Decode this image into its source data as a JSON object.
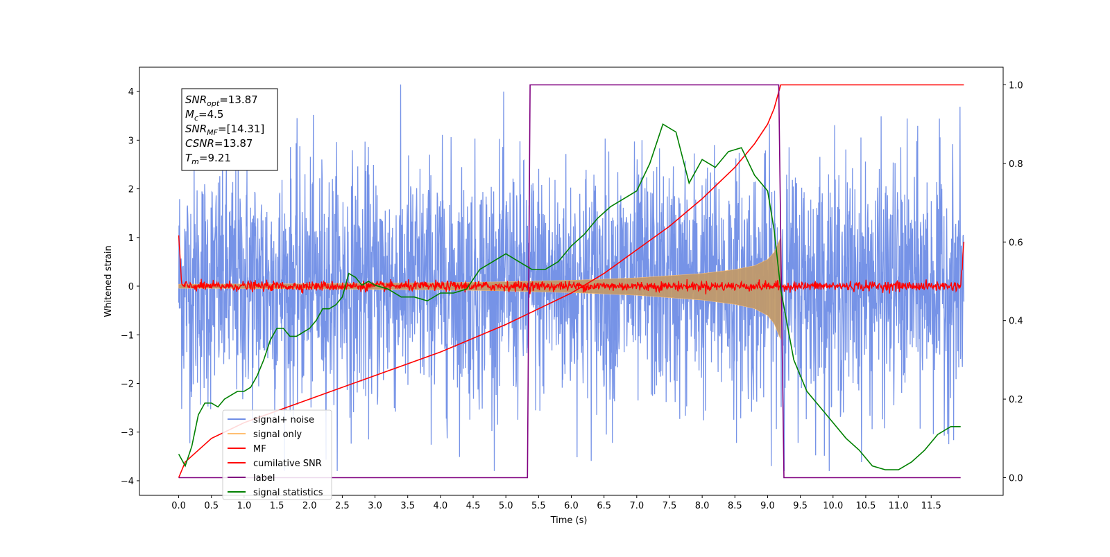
{
  "chart_data": {
    "type": "line",
    "xlabel": "Time (s)",
    "ylabel": "Whitened strain",
    "xlim": [
      -0.6,
      12.6
    ],
    "ylim": [
      -4.3,
      4.5
    ],
    "y2lim": [
      -0.045,
      1.045
    ],
    "xticks": [
      "0.0",
      "0.5",
      "1.0",
      "1.5",
      "2.0",
      "2.5",
      "3.0",
      "3.5",
      "4.0",
      "4.5",
      "5.0",
      "5.5",
      "6.0",
      "6.5",
      "7.0",
      "7.5",
      "8.0",
      "8.5",
      "9.0",
      "9.5",
      "10.0",
      "10.5",
      "11.0",
      "11.5"
    ],
    "yticks": [
      "4",
      "3",
      "2",
      "1",
      "0",
      "−1",
      "−2",
      "−3",
      "−4"
    ],
    "y2ticks": [
      "1.0",
      "0.8",
      "0.6",
      "0.4",
      "0.2",
      "0.0"
    ],
    "annotation": [
      {
        "base": "SNR",
        "sub": "opt",
        "value": "=13.87"
      },
      {
        "base": "M",
        "sub": "c",
        "value": "=4.5"
      },
      {
        "base": "SNR",
        "sub": "MF",
        "value": "=[14.31]"
      },
      {
        "base": "CSNR",
        "sub": "",
        "value": "=13.87"
      },
      {
        "base": "T",
        "sub": "m",
        "value": "=9.21"
      }
    ],
    "legend_position": "lower-left",
    "legend": [
      {
        "label": "signal+ noise",
        "color": "#6f8de6"
      },
      {
        "label": "signal only",
        "color": "#ffbf72"
      },
      {
        "label": "MF",
        "color": "#ff0000"
      },
      {
        "label": "cumilative SNR",
        "color": "#ff0000"
      },
      {
        "label": "label",
        "color": "#800080"
      },
      {
        "label": "signal statistics",
        "color": "#008000"
      }
    ],
    "series": [
      {
        "name": "signal+ noise",
        "axis": "left",
        "color": "#6f8de6",
        "style": "dense noise, approx ±3.8",
        "x_range": [
          0.0,
          12.0
        ],
        "envelope": [
          -3.8,
          4.2
        ]
      },
      {
        "name": "signal only",
        "axis": "left",
        "color": "#c19a6b",
        "style": "chirp envelope",
        "x": [
          0.0,
          1.0,
          2.0,
          3.0,
          4.0,
          5.0,
          6.0,
          7.0,
          8.0,
          8.5,
          8.8,
          9.0,
          9.1,
          9.2,
          9.21
        ],
        "amplitude": [
          0.04,
          0.045,
          0.05,
          0.06,
          0.07,
          0.09,
          0.12,
          0.17,
          0.26,
          0.34,
          0.42,
          0.55,
          0.7,
          1.0,
          0.0
        ]
      },
      {
        "name": "MF",
        "axis": "left",
        "color": "#ff0000",
        "style": "noise near 0, approx ±0.15",
        "x_range": [
          0.0,
          12.0
        ],
        "edge_values": [
          1.0,
          0.95
        ]
      },
      {
        "name": "cumilative SNR",
        "axis": "right",
        "color": "#ff0000",
        "x": [
          0.0,
          0.1,
          0.5,
          1.0,
          2.0,
          3.0,
          4.0,
          5.0,
          6.0,
          6.5,
          7.0,
          7.5,
          8.0,
          8.5,
          8.8,
          9.0,
          9.1,
          9.2,
          12.0
        ],
        "values": [
          0.0,
          0.04,
          0.1,
          0.14,
          0.2,
          0.26,
          0.32,
          0.39,
          0.47,
          0.52,
          0.58,
          0.64,
          0.71,
          0.79,
          0.85,
          0.9,
          0.94,
          1.0,
          1.0
        ]
      },
      {
        "name": "label",
        "axis": "right",
        "color": "#800080",
        "x": [
          0.0,
          5.33,
          5.37,
          9.17,
          9.25,
          11.95
        ],
        "values": [
          0.0,
          0.0,
          1.0,
          1.0,
          0.0,
          0.0
        ]
      },
      {
        "name": "signal statistics",
        "axis": "right",
        "color": "#008000",
        "x": [
          0.0,
          0.1,
          0.2,
          0.3,
          0.4,
          0.5,
          0.6,
          0.7,
          0.8,
          0.9,
          1.0,
          1.1,
          1.2,
          1.3,
          1.4,
          1.5,
          1.6,
          1.7,
          1.8,
          1.9,
          2.0,
          2.1,
          2.2,
          2.3,
          2.4,
          2.5,
          2.6,
          2.7,
          2.8,
          2.9,
          3.0,
          3.2,
          3.4,
          3.6,
          3.8,
          4.0,
          4.2,
          4.4,
          4.6,
          4.8,
          5.0,
          5.2,
          5.4,
          5.6,
          5.8,
          6.0,
          6.2,
          6.4,
          6.6,
          6.8,
          7.0,
          7.2,
          7.4,
          7.6,
          7.8,
          8.0,
          8.2,
          8.4,
          8.6,
          8.8,
          9.0,
          9.1,
          9.2,
          9.4,
          9.6,
          9.8,
          10.0,
          10.2,
          10.4,
          10.6,
          10.8,
          11.0,
          11.2,
          11.4,
          11.6,
          11.8,
          11.95
        ],
        "values": [
          0.06,
          0.03,
          0.08,
          0.16,
          0.19,
          0.19,
          0.18,
          0.2,
          0.21,
          0.22,
          0.22,
          0.23,
          0.26,
          0.3,
          0.35,
          0.38,
          0.38,
          0.36,
          0.36,
          0.37,
          0.38,
          0.4,
          0.43,
          0.43,
          0.44,
          0.46,
          0.52,
          0.51,
          0.49,
          0.5,
          0.49,
          0.48,
          0.46,
          0.46,
          0.45,
          0.47,
          0.47,
          0.48,
          0.53,
          0.55,
          0.57,
          0.55,
          0.53,
          0.53,
          0.55,
          0.59,
          0.62,
          0.66,
          0.69,
          0.71,
          0.73,
          0.8,
          0.9,
          0.88,
          0.75,
          0.81,
          0.79,
          0.83,
          0.84,
          0.77,
          0.73,
          0.63,
          0.48,
          0.3,
          0.22,
          0.18,
          0.14,
          0.1,
          0.07,
          0.03,
          0.02,
          0.02,
          0.04,
          0.07,
          0.11,
          0.13,
          0.13
        ]
      }
    ]
  }
}
